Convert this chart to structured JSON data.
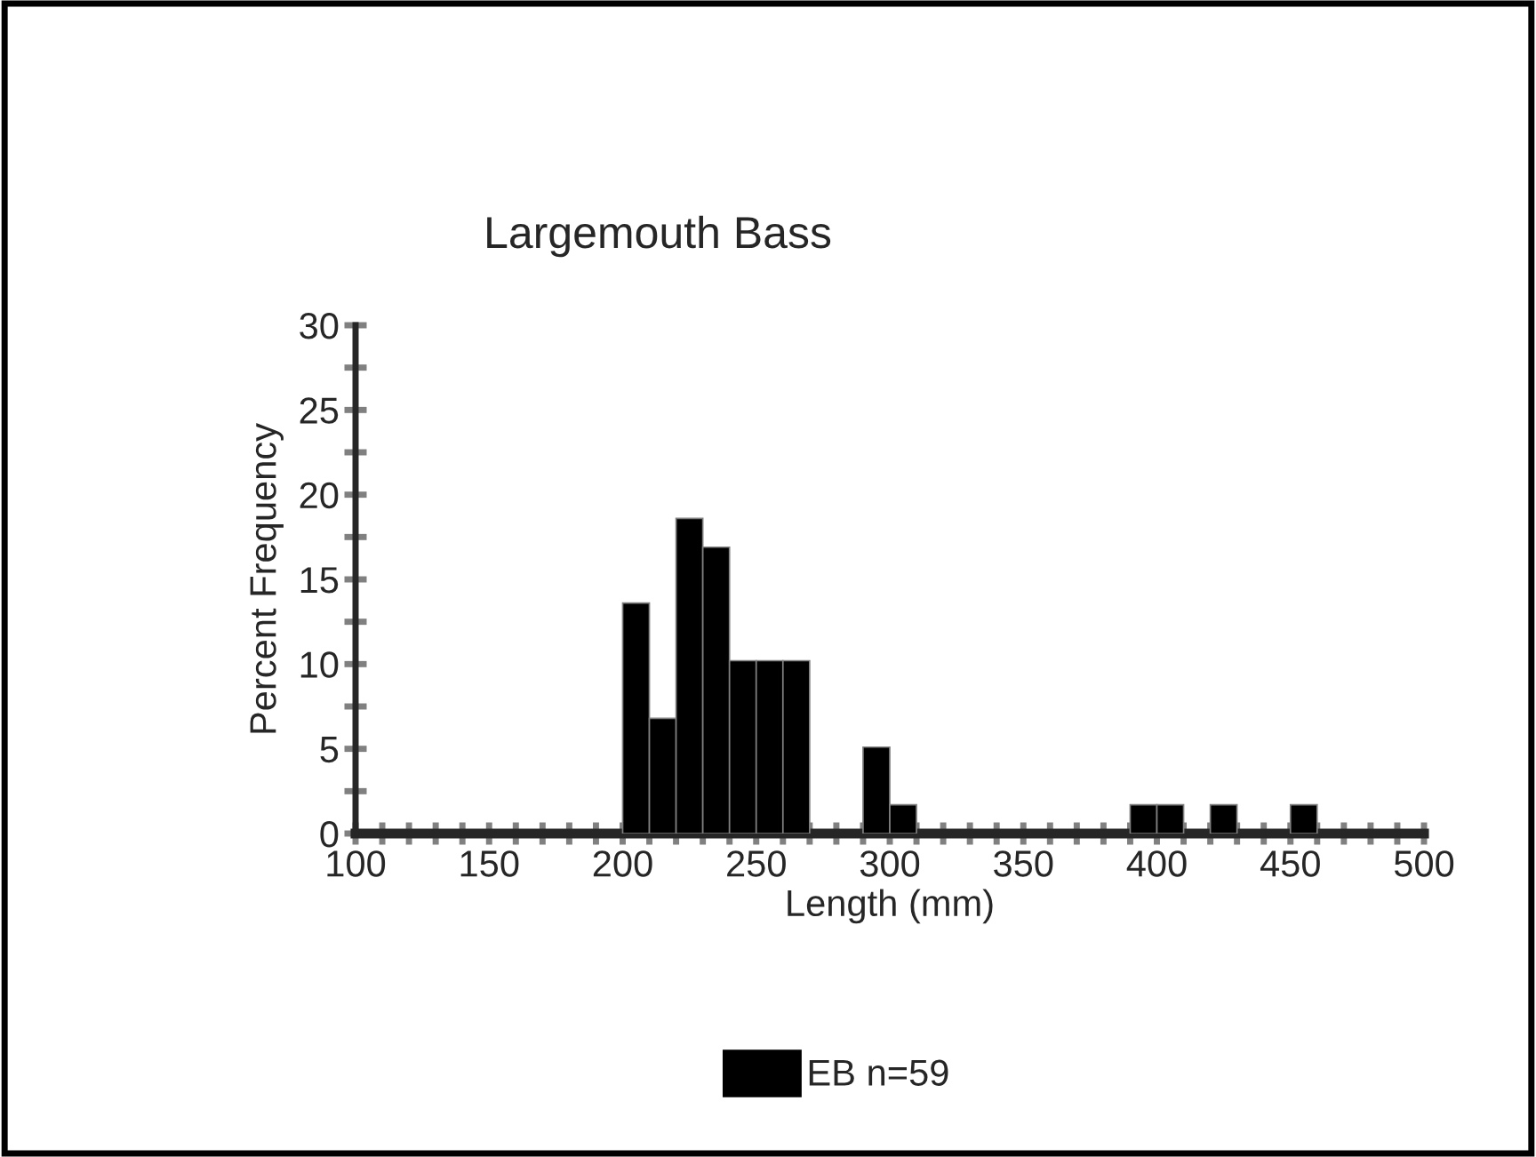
{
  "chart_data": {
    "type": "histogram",
    "title": "Largemouth Bass",
    "xlabel": "Length (mm)",
    "ylabel": "Percent Frequency",
    "bins": [
      100,
      110,
      120,
      130,
      140,
      150,
      160,
      170,
      180,
      190,
      200,
      210,
      220,
      230,
      240,
      250,
      260,
      270,
      280,
      290,
      300,
      310,
      320,
      330,
      340,
      350,
      360,
      370,
      380,
      390,
      400,
      410,
      420,
      430,
      440,
      450,
      460,
      470,
      480,
      490,
      500
    ],
    "series": [
      {
        "name": "EB n=59",
        "color": "#000000",
        "values": [
          0,
          0,
          0,
          0,
          0,
          0,
          0,
          0,
          0,
          0,
          13.6,
          6.8,
          18.6,
          16.9,
          10.2,
          10.2,
          10.2,
          0,
          0,
          5.1,
          1.7,
          0,
          0,
          0,
          0,
          0,
          0,
          0,
          0,
          1.7,
          1.7,
          0,
          1.7,
          0,
          0,
          1.7,
          0,
          0,
          0,
          0
        ]
      }
    ],
    "xlim": [
      100,
      500
    ],
    "xticks": [
      100,
      {
        "value": 110,
        "label": null
      },
      {
        "value": 120,
        "label": null
      },
      {
        "value": 130,
        "label": null
      },
      {
        "value": 140,
        "label": null
      },
      150,
      {
        "value": 160,
        "label": null
      },
      {
        "value": 170,
        "label": null
      },
      {
        "value": 180,
        "label": null
      },
      {
        "value": 190,
        "label": null
      },
      200,
      {
        "value": 210,
        "label": null
      },
      {
        "value": 220,
        "label": null
      },
      {
        "value": 230,
        "label": null
      },
      {
        "value": 240,
        "label": null
      },
      250,
      {
        "value": 260,
        "label": null
      },
      {
        "value": 270,
        "label": null
      },
      {
        "value": 280,
        "label": null
      },
      {
        "value": 290,
        "label": null
      },
      300,
      {
        "value": 310,
        "label": null
      },
      {
        "value": 320,
        "label": null
      },
      {
        "value": 330,
        "label": null
      },
      {
        "value": 340,
        "label": null
      },
      350,
      {
        "value": 360,
        "label": null
      },
      {
        "value": 370,
        "label": null
      },
      {
        "value": 380,
        "label": null
      },
      {
        "value": 390,
        "label": null
      },
      400,
      {
        "value": 410,
        "label": null
      },
      {
        "value": 420,
        "label": null
      },
      {
        "value": 430,
        "label": null
      },
      {
        "value": 440,
        "label": null
      },
      450,
      {
        "value": 460,
        "label": null
      },
      {
        "value": 470,
        "label": null
      },
      {
        "value": 480,
        "label": null
      },
      {
        "value": 490,
        "label": null
      },
      500
    ],
    "ylim": [
      0,
      30
    ],
    "yticks": [
      0,
      {
        "value": 2.5,
        "label": null
      },
      5,
      {
        "value": 7.5,
        "label": null
      },
      10,
      {
        "value": 12.5,
        "label": null
      },
      15,
      {
        "value": 17.5,
        "label": null
      },
      20,
      {
        "value": 22.5,
        "label": null
      },
      25,
      {
        "value": 27.5,
        "label": null
      },
      30
    ],
    "grid": false,
    "legend": "bottom"
  }
}
